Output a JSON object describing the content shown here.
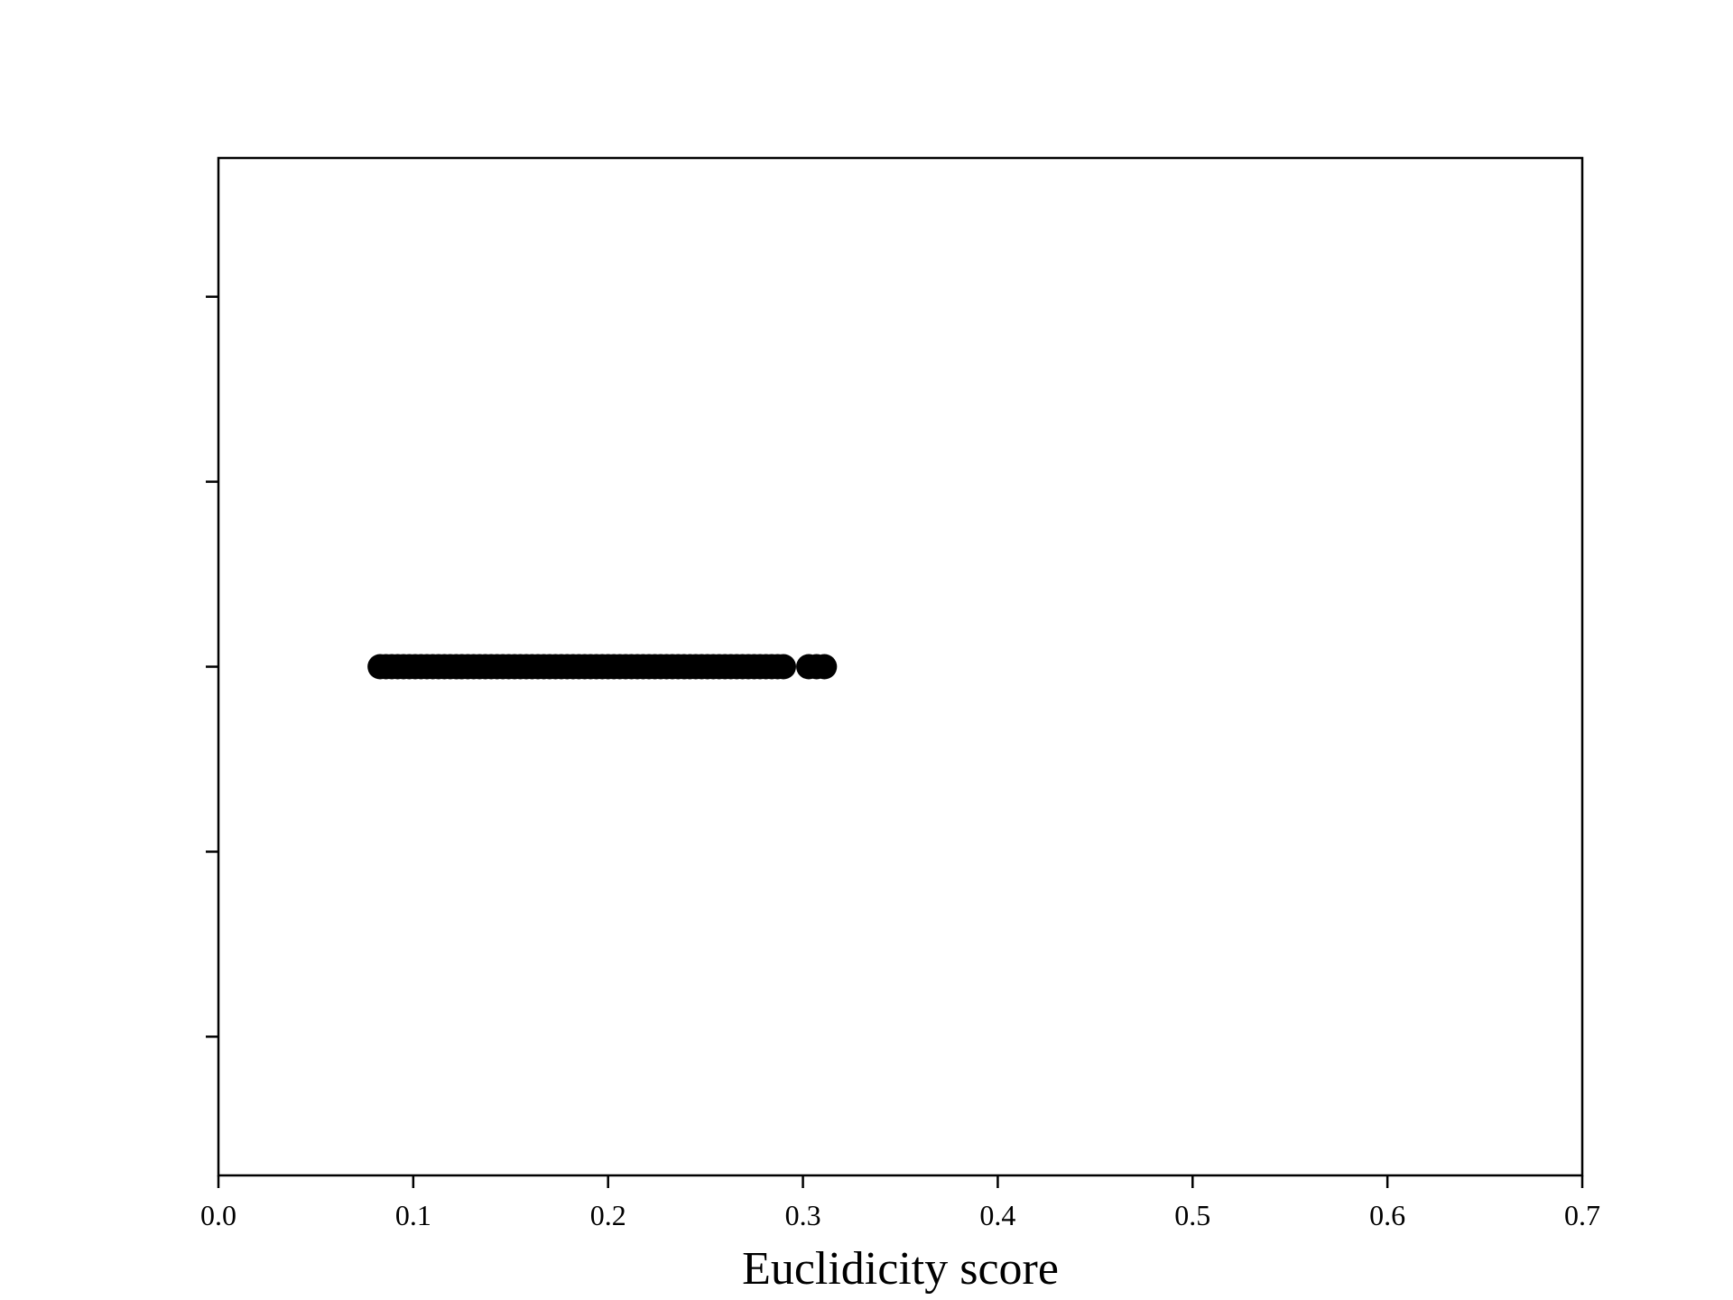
{
  "chart_data": {
    "type": "scatter",
    "title": "",
    "xlabel": "Euclidicity score",
    "ylabel": "",
    "xlim": [
      0.0,
      0.7
    ],
    "ylim": [
      -0.055,
      0.055
    ],
    "x_ticks": [
      "0.0",
      "0.1",
      "0.2",
      "0.3",
      "0.4",
      "0.5",
      "0.6",
      "0.7"
    ],
    "y_ticks": [
      -0.04,
      -0.02,
      0.0,
      0.02,
      0.04
    ],
    "grid": false,
    "legend": "none",
    "marker_color": "#000000",
    "series": [
      {
        "x": [
          0.083,
          0.086,
          0.089,
          0.092,
          0.095,
          0.098,
          0.101,
          0.104,
          0.107,
          0.11,
          0.113,
          0.116,
          0.119,
          0.122,
          0.125,
          0.128,
          0.131,
          0.134,
          0.137,
          0.14,
          0.143,
          0.146,
          0.149,
          0.152,
          0.155,
          0.158,
          0.161,
          0.164,
          0.167,
          0.17,
          0.173,
          0.176,
          0.179,
          0.182,
          0.185,
          0.188,
          0.191,
          0.194,
          0.197,
          0.2,
          0.203,
          0.206,
          0.209,
          0.212,
          0.215,
          0.218,
          0.221,
          0.224,
          0.227,
          0.23,
          0.233,
          0.236,
          0.239,
          0.242,
          0.245,
          0.248,
          0.251,
          0.254,
          0.257,
          0.26,
          0.263,
          0.266,
          0.269,
          0.272,
          0.275,
          0.278,
          0.281,
          0.284,
          0.287,
          0.29,
          0.303,
          0.307,
          0.311
        ],
        "y": [
          0,
          0,
          0,
          0,
          0,
          0,
          0,
          0,
          0,
          0,
          0,
          0,
          0,
          0,
          0,
          0,
          0,
          0,
          0,
          0,
          0,
          0,
          0,
          0,
          0,
          0,
          0,
          0,
          0,
          0,
          0,
          0,
          0,
          0,
          0,
          0,
          0,
          0,
          0,
          0,
          0,
          0,
          0,
          0,
          0,
          0,
          0,
          0,
          0,
          0,
          0,
          0,
          0,
          0,
          0,
          0,
          0,
          0,
          0,
          0,
          0,
          0,
          0,
          0,
          0,
          0,
          0,
          0,
          0,
          0,
          0,
          0,
          0
        ]
      }
    ]
  }
}
